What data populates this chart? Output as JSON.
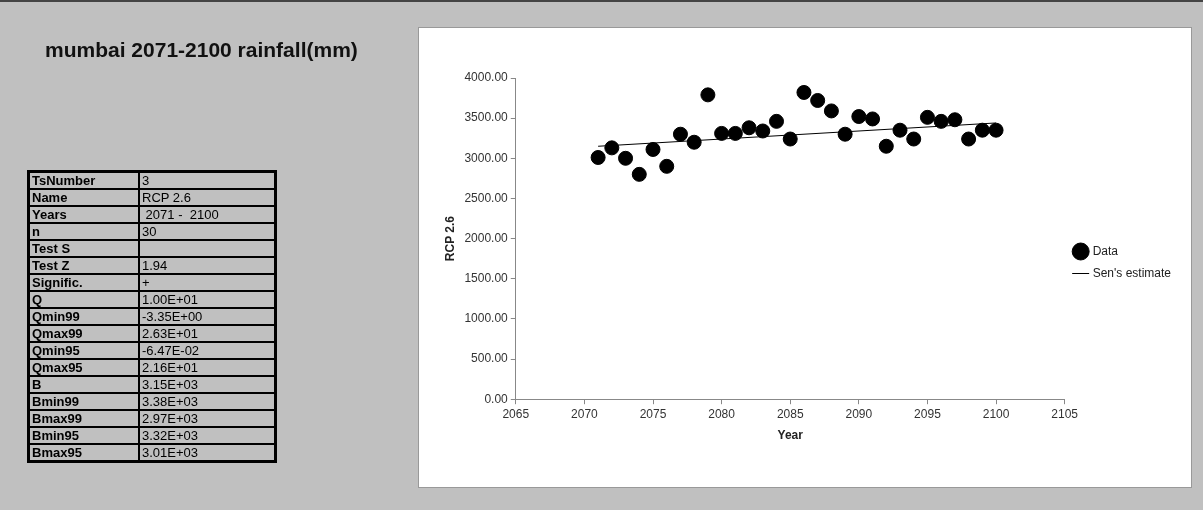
{
  "chart_data": [
    {
      "type": "other",
      "title": "mumbai 2071-2100 rainfall(mm)",
      "y_categories": [
        "TsNumber",
        "Name",
        "Years",
        "n",
        "Test S",
        "Test Z",
        "Signific.",
        "Q",
        "Qmin99",
        "Qmax99",
        "Qmin95",
        "Qmax95",
        "B",
        "Bmin99",
        "Bmax99",
        "Bmin95",
        "Bmax95"
      ],
      "cell_labels": [
        [
          "3"
        ],
        [
          "RCP 2.6"
        ],
        [
          " 2071 -  2100"
        ],
        [
          "30"
        ],
        [
          null
        ],
        [
          "1.94"
        ],
        [
          "+"
        ],
        [
          "1.00E+01"
        ],
        [
          "-3.35E+00"
        ],
        [
          "2.63E+01"
        ],
        [
          "-6.47E-02"
        ],
        [
          "2.16E+01"
        ],
        [
          "3.15E+03"
        ],
        [
          "3.38E+03"
        ],
        [
          "2.97E+03"
        ],
        [
          "3.32E+03"
        ],
        [
          "3.01E+03"
        ]
      ]
    },
    {
      "type": "scatter",
      "xlabel": "Year",
      "ylabel": "RCP 2.6",
      "xlim": [
        2065,
        2105
      ],
      "xticks": [
        2065,
        2070,
        2075,
        2080,
        2085,
        2090,
        2095,
        2100,
        2105
      ],
      "ylim": [
        0,
        4000
      ],
      "yticks": [
        {
          "value": 0,
          "label": "0.00"
        },
        {
          "value": 500,
          "label": "500.00"
        },
        {
          "value": 1000,
          "label": "1000.00"
        },
        {
          "value": 1500,
          "label": "1500.00"
        },
        {
          "value": 2000,
          "label": "2000.00"
        },
        {
          "value": 2500,
          "label": "2500.00"
        },
        {
          "value": 3000,
          "label": "3000.00"
        },
        {
          "value": 3500,
          "label": "3500.00"
        },
        {
          "value": 4000,
          "label": "4000.00"
        }
      ],
      "grid": false,
      "legend": "right",
      "series": [
        {
          "name": "Data",
          "type": "scatter",
          "marker": "circle",
          "color": "#000000",
          "x": [
            2071,
            2072,
            2073,
            2074,
            2075,
            2076,
            2077,
            2078,
            2079,
            2080,
            2081,
            2082,
            2083,
            2084,
            2085,
            2086,
            2087,
            2088,
            2089,
            2090,
            2091,
            2092,
            2093,
            2094,
            2095,
            2096,
            2097,
            2098,
            2099,
            2100
          ],
          "values": [
            3010,
            3130,
            3000,
            2800,
            3110,
            2900,
            3300,
            3200,
            3790,
            3310,
            3310,
            3380,
            3340,
            3460,
            3240,
            3820,
            3720,
            3590,
            3300,
            3520,
            3490,
            3150,
            3350,
            3240,
            3510,
            3460,
            3480,
            3240,
            3350,
            3350
          ]
        },
        {
          "name": "Sen's estimate",
          "type": "line",
          "marker": "none",
          "color": "#000000",
          "x": [
            2071,
            2100
          ],
          "values": [
            3150,
            3440
          ]
        }
      ]
    }
  ]
}
